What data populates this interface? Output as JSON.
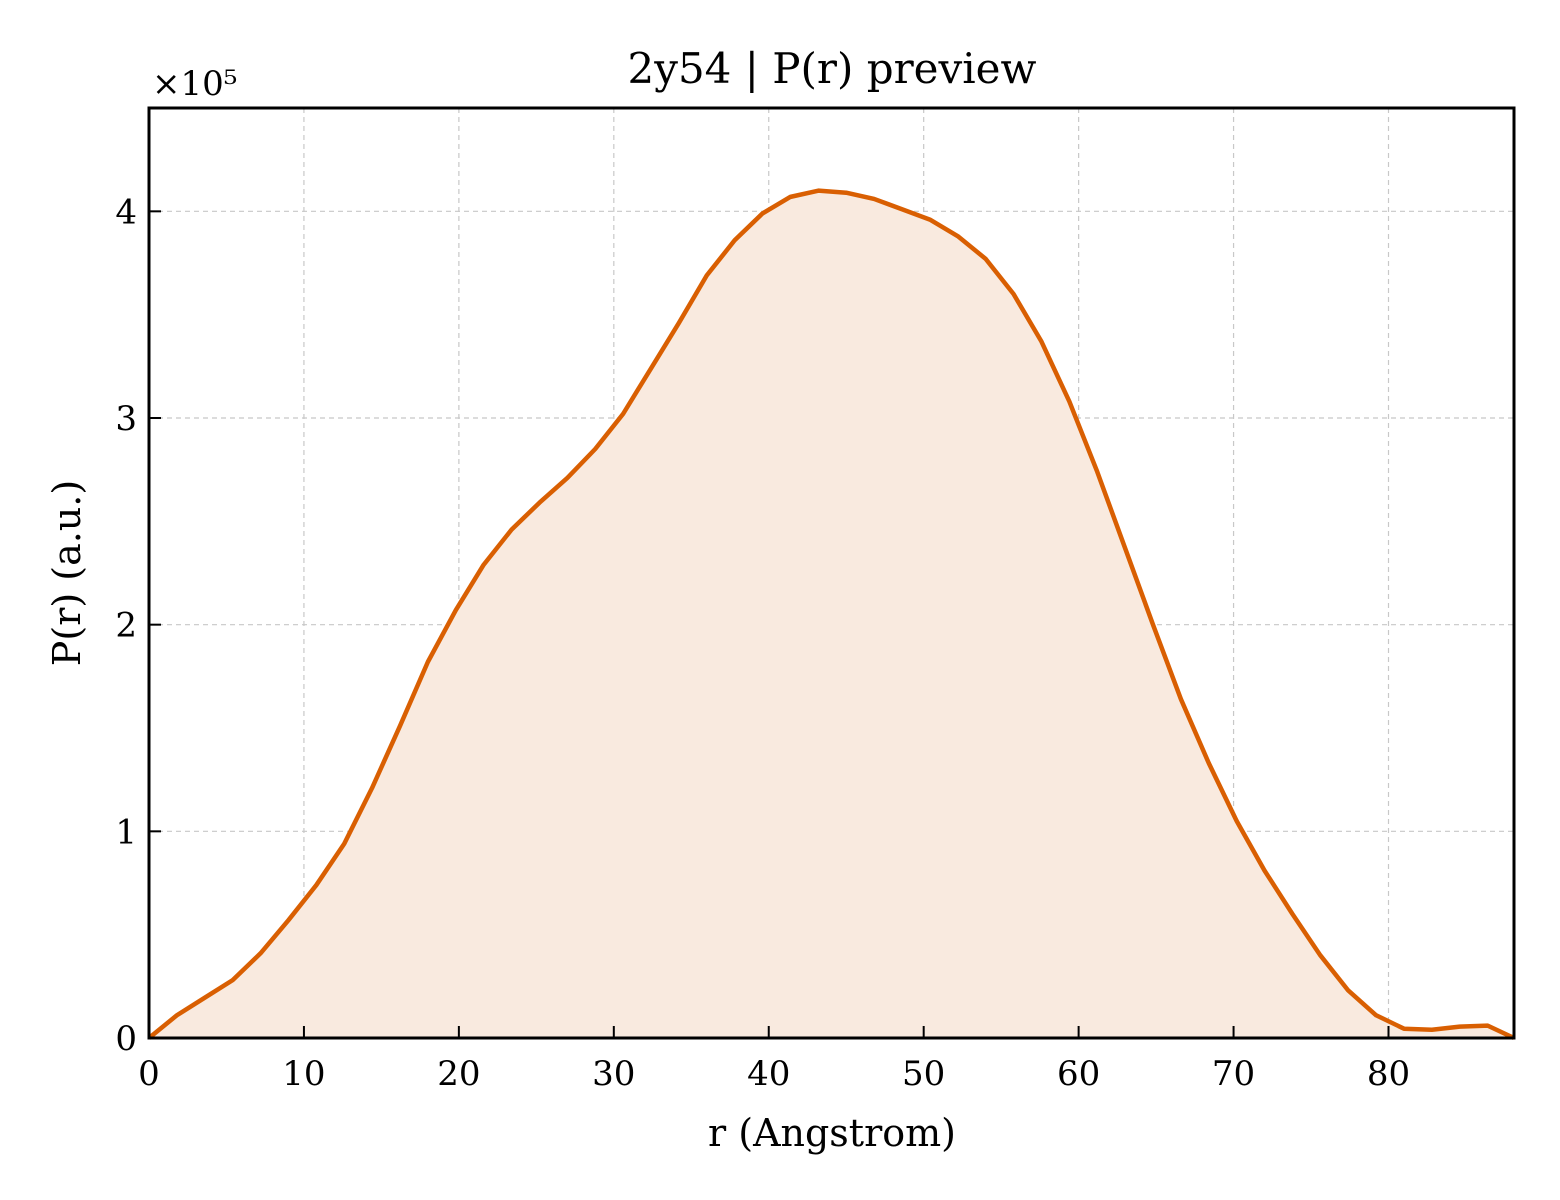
{
  "chart_data": {
    "type": "area",
    "title": "2y54 | P(r) preview",
    "xlabel": "r (Angstrom)",
    "ylabel": "P(r) (a.u.)",
    "y_scale_label": "×10⁵",
    "y_scale_factor": 100000,
    "xlim": [
      0,
      88.1
    ],
    "ylim": [
      0,
      450000
    ],
    "x_ticks": [
      0,
      10,
      20,
      30,
      40,
      50,
      60,
      70,
      80
    ],
    "y_ticks": [
      0,
      100000,
      200000,
      300000,
      400000
    ],
    "y_tick_labels": [
      "0",
      "1",
      "2",
      "3",
      "4"
    ],
    "grid": true,
    "line_color": "#d95f02",
    "fill_color": "#f9eadf",
    "series": [
      {
        "x": [
          0,
          1.8,
          3.6,
          5.4,
          7.2,
          9.0,
          10.8,
          12.6,
          14.4,
          16.2,
          18.0,
          19.8,
          21.6,
          23.4,
          25.2,
          27.0,
          28.8,
          30.6,
          32.4,
          34.2,
          36.0,
          37.8,
          39.6,
          41.4,
          43.2,
          45.0,
          46.8,
          48.6,
          50.4,
          52.2,
          54.0,
          55.8,
          57.6,
          59.4,
          61.2,
          63.0,
          64.8,
          66.6,
          68.4,
          70.2,
          72.0,
          73.8,
          75.6,
          77.4,
          79.2,
          81.0,
          82.8,
          84.6,
          86.4,
          88.1
        ],
        "y": [
          0,
          11000,
          19500,
          28000,
          41000,
          57000,
          74000,
          94000,
          121000,
          151000,
          182000,
          207000,
          229000,
          246000,
          259000,
          271000,
          285000,
          302000,
          324000,
          346000,
          369000,
          386000,
          399000,
          407000,
          410000,
          409000,
          406000,
          401000,
          396000,
          388000,
          377000,
          360000,
          337000,
          308000,
          274000,
          237000,
          200000,
          164000,
          133000,
          105000,
          81000,
          60000,
          40000,
          23000,
          11000,
          4500,
          4000,
          5500,
          6000,
          0
        ]
      }
    ]
  }
}
